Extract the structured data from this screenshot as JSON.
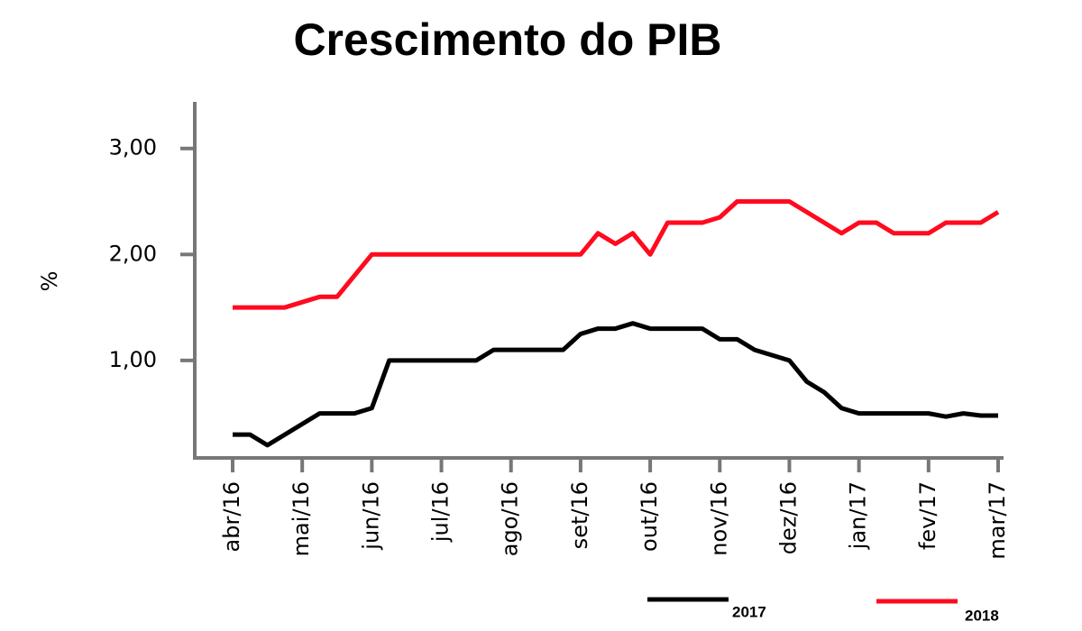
{
  "chart_data": {
    "type": "line",
    "title": "Crescimento do PIB",
    "y_label": "%",
    "categories": [
      "abr/16",
      null,
      null,
      null,
      "mai/16",
      null,
      null,
      null,
      "jun/16",
      null,
      null,
      null,
      "jul/16",
      null,
      null,
      null,
      "ago/16",
      null,
      null,
      null,
      "set/16",
      null,
      null,
      null,
      "out/16",
      null,
      null,
      null,
      "nov/16",
      null,
      null,
      null,
      "dez/16",
      null,
      null,
      null,
      "jan/17",
      null,
      null,
      null,
      "fev/17",
      null,
      null,
      null,
      "mar/17"
    ],
    "series": [
      {
        "name": "2017",
        "color": "#000000",
        "values": [
          0.3,
          0.3,
          0.2,
          0.3,
          0.4,
          0.5,
          0.5,
          0.5,
          0.55,
          1.0,
          1.0,
          1.0,
          1.0,
          1.0,
          1.0,
          1.1,
          1.1,
          1.1,
          1.1,
          1.1,
          1.25,
          1.3,
          1.3,
          1.35,
          1.3,
          1.3,
          1.3,
          1.3,
          1.2,
          1.2,
          1.1,
          1.05,
          1.0,
          0.8,
          0.7,
          0.55,
          0.5,
          0.5,
          0.5,
          0.5,
          0.5,
          0.47,
          0.5,
          0.48,
          0.48
        ]
      },
      {
        "name": "2018",
        "color": "#ff0a1e",
        "values": [
          1.5,
          1.5,
          1.5,
          1.5,
          1.55,
          1.6,
          1.6,
          1.8,
          2.0,
          2.0,
          2.0,
          2.0,
          2.0,
          2.0,
          2.0,
          2.0,
          2.0,
          2.0,
          2.0,
          2.0,
          2.0,
          2.2,
          2.1,
          2.2,
          2.0,
          2.3,
          2.3,
          2.3,
          2.35,
          2.5,
          2.5,
          2.5,
          2.5,
          2.4,
          2.3,
          2.2,
          2.3,
          2.3,
          2.2,
          2.2,
          2.2,
          2.3,
          2.3,
          2.3,
          2.4
        ]
      }
    ],
    "ylim": [
      0.08,
      3.44
    ],
    "yticks": [
      {
        "value": 1,
        "label": "1,00"
      },
      {
        "value": 2,
        "label": "2,00"
      },
      {
        "value": 3,
        "label": "3,00"
      }
    ]
  }
}
